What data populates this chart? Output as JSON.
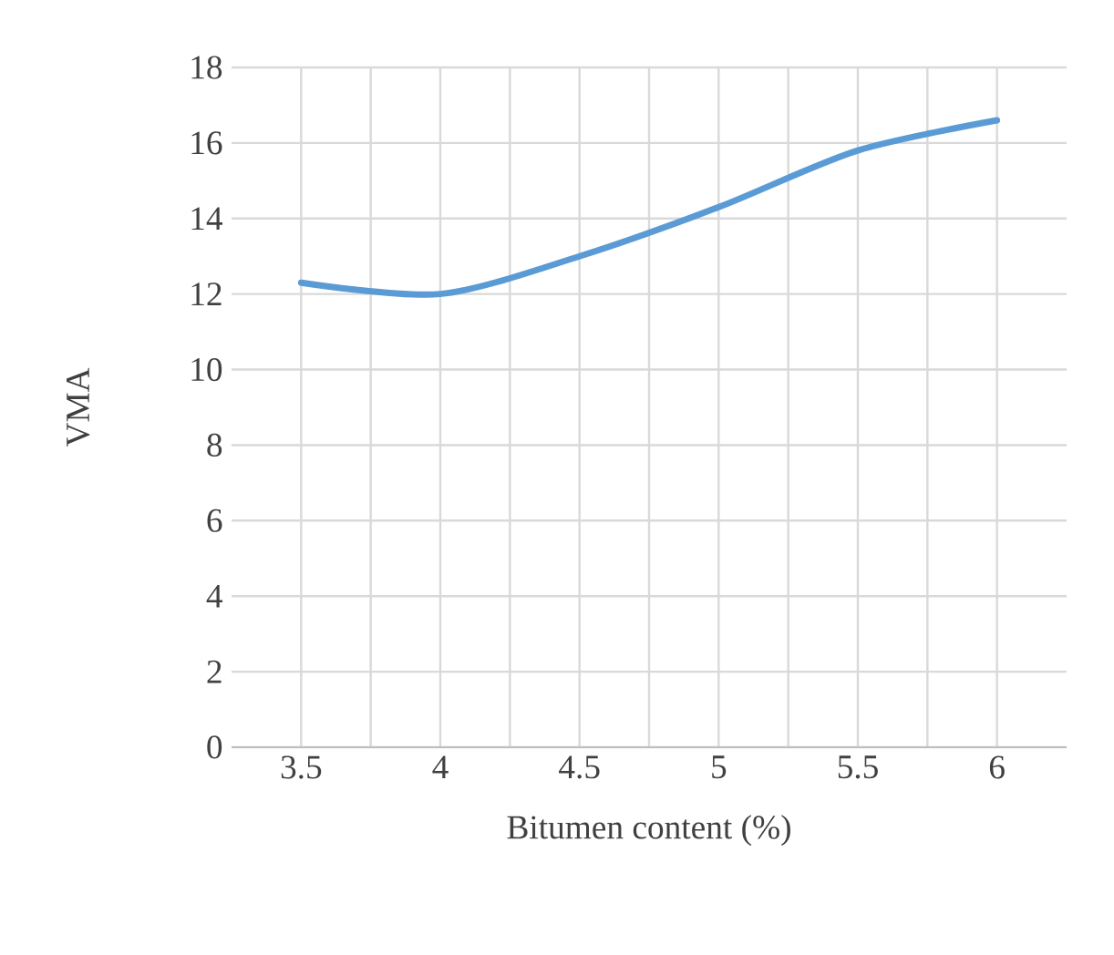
{
  "chart_data": {
    "type": "line",
    "xlabel": "Bitumen content (%)",
    "ylabel": "VMA",
    "x": [
      3.5,
      4,
      4.5,
      5,
      5.5,
      6
    ],
    "series": [
      {
        "color": "#5b9bd5",
        "values": [
          12.3,
          12.0,
          13.0,
          14.3,
          15.8,
          16.6
        ]
      }
    ],
    "xlim": [
      3.25,
      6.25
    ],
    "xticks": [
      3.5,
      4,
      4.5,
      5,
      5.5,
      6
    ],
    "ylim": [
      0,
      18
    ],
    "yticks": [
      0,
      2,
      4,
      6,
      8,
      10,
      12,
      14,
      16,
      18
    ],
    "grid": true,
    "marker": "none",
    "line_style": "solid"
  }
}
